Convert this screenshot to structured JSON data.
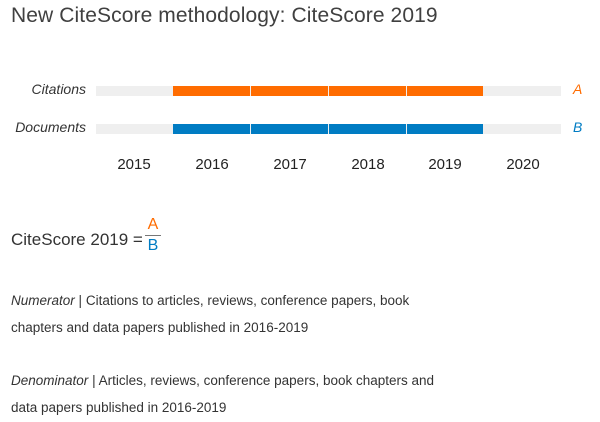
{
  "title": "New CiteScore methodology: CiteScore 2019",
  "diagram": {
    "rows": [
      {
        "label": "Citations",
        "letter": "A",
        "color": "#ff6c00"
      },
      {
        "label": "Documents",
        "letter": "B",
        "color": "#007cc3"
      }
    ],
    "years": [
      "2015",
      "2016",
      "2017",
      "2018",
      "2019",
      "2020"
    ],
    "highlighted_years": [
      "2016",
      "2017",
      "2018",
      "2019"
    ],
    "track_color": "#efefef"
  },
  "formula": {
    "label": "CiteScore 2019 =",
    "numerator": "A",
    "denominator": "B"
  },
  "numerator_desc": {
    "term": "Numerator",
    "separator": "|",
    "text_line1": "Citations to articles, reviews, conference papers, book",
    "text_line2": "chapters and data papers published in 2016-2019"
  },
  "denominator_desc": {
    "term": "Denominator",
    "separator": "|",
    "text_line1": "Articles, reviews, conference papers, book chapters and",
    "text_line2": "data papers published in 2016-2019"
  }
}
